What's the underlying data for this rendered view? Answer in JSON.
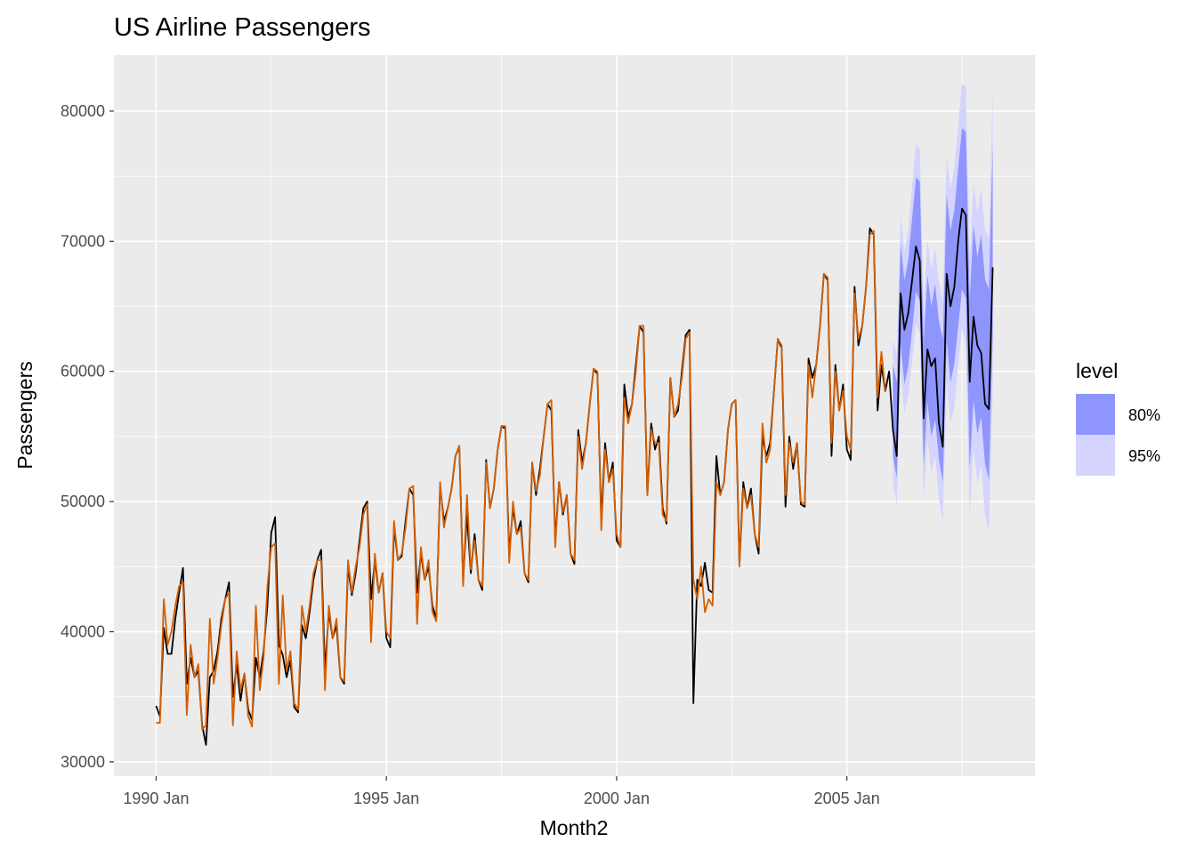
{
  "chart_data": {
    "type": "line",
    "title": "US Airline Passengers",
    "x_label": "Month2",
    "y_label": "Passengers",
    "legend_title": "level",
    "legend_position": "right",
    "grid": true,
    "x": [
      "1990 Jan",
      "1990 Feb",
      "1990 Mar",
      "1990 Apr",
      "1990 May",
      "1990 Jun",
      "1990 Jul",
      "1990 Aug",
      "1990 Sep",
      "1990 Oct",
      "1990 Nov",
      "1990 Dec",
      "1991 Jan",
      "1991 Feb",
      "1991 Mar",
      "1991 Apr",
      "1991 May",
      "1991 Jun",
      "1991 Jul",
      "1991 Aug",
      "1991 Sep",
      "1991 Oct",
      "1991 Nov",
      "1991 Dec",
      "1992 Jan",
      "1992 Feb",
      "1992 Mar",
      "1992 Apr",
      "1992 May",
      "1992 Jun",
      "1992 Jul",
      "1992 Aug",
      "1992 Sep",
      "1992 Oct",
      "1992 Nov",
      "1992 Dec",
      "1993 Jan",
      "1993 Feb",
      "1993 Mar",
      "1993 Apr",
      "1993 May",
      "1993 Jun",
      "1993 Jul",
      "1993 Aug",
      "1993 Sep",
      "1993 Oct",
      "1993 Nov",
      "1993 Dec",
      "1994 Jan",
      "1994 Feb",
      "1994 Mar",
      "1994 Apr",
      "1994 May",
      "1994 Jun",
      "1994 Jul",
      "1994 Aug",
      "1994 Sep",
      "1994 Oct",
      "1994 Nov",
      "1994 Dec",
      "1995 Jan",
      "1995 Feb",
      "1995 Mar",
      "1995 Apr",
      "1995 May",
      "1995 Jun",
      "1995 Jul",
      "1995 Aug",
      "1995 Sep",
      "1995 Oct",
      "1995 Nov",
      "1995 Dec",
      "1996 Jan",
      "1996 Feb",
      "1996 Mar",
      "1996 Apr",
      "1996 May",
      "1996 Jun",
      "1996 Jul",
      "1996 Aug",
      "1996 Sep",
      "1996 Oct",
      "1996 Nov",
      "1996 Dec",
      "1997 Jan",
      "1997 Feb",
      "1997 Mar",
      "1997 Apr",
      "1997 May",
      "1997 Jun",
      "1997 Jul",
      "1997 Aug",
      "1997 Sep",
      "1997 Oct",
      "1997 Nov",
      "1997 Dec",
      "1998 Jan",
      "1998 Feb",
      "1998 Mar",
      "1998 Apr",
      "1998 May",
      "1998 Jun",
      "1998 Jul",
      "1998 Aug",
      "1998 Sep",
      "1998 Oct",
      "1998 Nov",
      "1998 Dec",
      "1999 Jan",
      "1999 Feb",
      "1999 Mar",
      "1999 Apr",
      "1999 May",
      "1999 Jun",
      "1999 Jul",
      "1999 Aug",
      "1999 Sep",
      "1999 Oct",
      "1999 Nov",
      "1999 Dec",
      "2000 Jan",
      "2000 Feb",
      "2000 Mar",
      "2000 Apr",
      "2000 May",
      "2000 Jun",
      "2000 Jul",
      "2000 Aug",
      "2000 Sep",
      "2000 Oct",
      "2000 Nov",
      "2000 Dec",
      "2001 Jan",
      "2001 Feb",
      "2001 Mar",
      "2001 Apr",
      "2001 May",
      "2001 Jun",
      "2001 Jul",
      "2001 Aug",
      "2001 Sep",
      "2001 Oct",
      "2001 Nov",
      "2001 Dec",
      "2002 Jan",
      "2002 Feb",
      "2002 Mar",
      "2002 Apr",
      "2002 May",
      "2002 Jun",
      "2002 Jul",
      "2002 Aug",
      "2002 Sep",
      "2002 Oct",
      "2002 Nov",
      "2002 Dec",
      "2003 Jan",
      "2003 Feb",
      "2003 Mar",
      "2003 Apr",
      "2003 May",
      "2003 Jun",
      "2003 Jul",
      "2003 Aug",
      "2003 Sep",
      "2003 Oct",
      "2003 Nov",
      "2003 Dec",
      "2004 Jan",
      "2004 Feb",
      "2004 Mar",
      "2004 Apr",
      "2004 May",
      "2004 Jun",
      "2004 Jul",
      "2004 Aug",
      "2004 Sep",
      "2004 Oct",
      "2004 Nov",
      "2004 Dec",
      "2005 Jan",
      "2005 Feb",
      "2005 Mar",
      "2005 Apr",
      "2005 May",
      "2005 Jun",
      "2005 Jul",
      "2005 Aug",
      "2005 Sep",
      "2005 Oct",
      "2005 Nov",
      "2005 Dec",
      "2006 Jan",
      "2006 Feb",
      "2006 Mar",
      "2006 Apr",
      "2006 May",
      "2006 Jun",
      "2006 Jul",
      "2006 Aug",
      "2006 Sep",
      "2006 Oct",
      "2006 Nov",
      "2006 Dec",
      "2007 Jan",
      "2007 Feb",
      "2007 Mar",
      "2007 Apr",
      "2007 May",
      "2007 Jun",
      "2007 Jul",
      "2007 Aug",
      "2007 Sep",
      "2007 Oct",
      "2007 Nov",
      "2007 Dec",
      "2008 Jan",
      "2008 Feb",
      "2008 Mar"
    ],
    "series": [
      {
        "color": "#000000",
        "values": [
          34300,
          33500,
          40300,
          38300,
          38300,
          41000,
          43000,
          44900,
          36000,
          38000,
          36500,
          37000,
          32800,
          31300,
          36500,
          37000,
          38500,
          41000,
          42500,
          43800,
          35000,
          37500,
          34700,
          36800,
          34000,
          33200,
          38000,
          36500,
          38500,
          42000,
          47600,
          48800,
          39000,
          38200,
          36500,
          37800,
          34200,
          33800,
          40500,
          39500,
          41500,
          44000,
          45500,
          46300,
          37000,
          41500,
          39500,
          40500,
          36500,
          36000,
          45000,
          42800,
          44500,
          47000,
          49500,
          50000,
          42500,
          45500,
          43000,
          44500,
          39500,
          38800,
          48000,
          45500,
          45800,
          48500,
          51000,
          50500,
          43000,
          46000,
          44000,
          45000,
          42000,
          41000,
          51200,
          48500,
          49500,
          51000,
          53500,
          54200,
          44000,
          49000,
          44500,
          47500,
          44000,
          43200,
          53200,
          49500,
          51000,
          54000,
          55800,
          55600,
          46000,
          49500,
          47500,
          48500,
          44500,
          43800,
          53000,
          50500,
          52500,
          55000,
          57500,
          57000,
          47000,
          51500,
          49000,
          50500,
          46000,
          45200,
          55500,
          53000,
          54500,
          57500,
          60200,
          59800,
          48500,
          54500,
          51500,
          53000,
          47000,
          46500,
          59000,
          56500,
          57500,
          60500,
          63500,
          63000,
          50500,
          56000,
          54000,
          55000,
          49500,
          48300,
          59500,
          56500,
          57000,
          60000,
          62800,
          63200,
          34500,
          44000,
          43500,
          45300,
          43200,
          43000,
          53500,
          50500,
          51500,
          55500,
          57500,
          57800,
          45200,
          51500,
          49500,
          51000,
          47500,
          46000,
          55000,
          53500,
          54500,
          58500,
          62500,
          61800,
          49600,
          55000,
          52500,
          54500,
          49800,
          49600,
          61000,
          59500,
          60500,
          63500,
          67500,
          67000,
          53500,
          60500,
          57000,
          59000,
          54000,
          53200,
          66500,
          62000,
          63500,
          66500,
          71000,
          70500,
          57000,
          60500,
          58500,
          60000,
          55500,
          53500,
          66000,
          63200,
          64500,
          67000,
          69600,
          68500,
          56400,
          61700,
          60400,
          61000,
          56000,
          54200,
          67500,
          65000,
          66500,
          70000,
          72500,
          72000,
          59200,
          64200,
          62000,
          61400,
          57500,
          57100,
          68000
        ]
      },
      {
        "color": "#d55e00",
        "values": [
          33000,
          33000,
          42500,
          39000,
          40000,
          42000,
          43500,
          43800,
          33600,
          39000,
          36500,
          37500,
          32500,
          32800,
          41000,
          36000,
          38000,
          40500,
          42500,
          43000,
          32800,
          38500,
          35500,
          36800,
          33500,
          32700,
          42000,
          35500,
          38000,
          43500,
          46500,
          46800,
          36000,
          42800,
          37000,
          38500,
          34500,
          34000,
          42000,
          40000,
          42000,
          44500,
          45500,
          45500,
          35500,
          42000,
          39500,
          41000,
          36500,
          36200,
          45500,
          43000,
          45000,
          46500,
          49000,
          49800,
          39200,
          46000,
          43000,
          44500,
          40000,
          39500,
          48500,
          45500,
          46000,
          48000,
          51000,
          51200,
          40600,
          46500,
          44000,
          45500,
          41500,
          40800,
          51500,
          48000,
          49500,
          51000,
          53500,
          54300,
          43500,
          50500,
          44800,
          47000,
          44000,
          43500,
          53000,
          49500,
          51000,
          54000,
          55800,
          55800,
          45300,
          50000,
          47500,
          48000,
          44500,
          44000,
          53000,
          50800,
          52000,
          55000,
          57500,
          57800,
          46500,
          51500,
          49200,
          50500,
          46000,
          45500,
          55000,
          52500,
          54500,
          57500,
          60200,
          60000,
          47800,
          54000,
          51500,
          52500,
          47500,
          46500,
          58000,
          56000,
          57500,
          60000,
          63500,
          63500,
          50500,
          55500,
          54500,
          54500,
          49000,
          48500,
          59500,
          56500,
          57500,
          59500,
          62500,
          63000,
          44000,
          42500,
          45000,
          41500,
          42500,
          42000,
          51500,
          50500,
          51500,
          55500,
          57500,
          57800,
          45000,
          51000,
          49500,
          50500,
          47500,
          46500,
          56000,
          53000,
          54000,
          58500,
          62500,
          62000,
          50500,
          54500,
          53000,
          54500,
          50000,
          49800,
          60500,
          58000,
          60500,
          63500,
          67500,
          67200,
          54500,
          60000,
          57000,
          58500,
          55000,
          54000,
          66000,
          62500,
          63500,
          66500,
          70500,
          70800,
          58000,
          61500,
          58500,
          null,
          null,
          null,
          null,
          null,
          null,
          null,
          null,
          null,
          null,
          null,
          null,
          null,
          null,
          null,
          null,
          null,
          null,
          null,
          null,
          null,
          null,
          null,
          null,
          null,
          null,
          null,
          null
        ]
      }
    ],
    "bands": [
      {
        "name": "95%",
        "color": "#d4d4fe",
        "x": [
          "2006 Jan",
          "2006 Feb",
          "2006 Mar",
          "2006 Apr",
          "2006 May",
          "2006 Jun",
          "2006 Jul",
          "2006 Aug",
          "2006 Sep",
          "2006 Oct",
          "2006 Nov",
          "2006 Dec",
          "2007 Jan",
          "2007 Feb",
          "2007 Mar",
          "2007 Apr",
          "2007 May",
          "2007 Jun",
          "2007 Jul",
          "2007 Aug",
          "2007 Sep",
          "2007 Oct",
          "2007 Nov",
          "2007 Dec",
          "2008 Jan",
          "2008 Feb",
          "2008 Mar"
        ],
        "lower": [
          51500,
          49800,
          60000,
          56800,
          58100,
          60800,
          63600,
          62900,
          50200,
          54900,
          52200,
          53500,
          50200,
          48500,
          59300,
          56000,
          57300,
          60500,
          63300,
          62100,
          48900,
          54200,
          51400,
          52700,
          49000,
          47700,
          58500
        ],
        "upper": [
          62500,
          61200,
          72000,
          69200,
          70900,
          74200,
          77400,
          77100,
          64800,
          70100,
          67800,
          69500,
          66800,
          65500,
          76700,
          74000,
          75700,
          78900,
          82100,
          81900,
          68600,
          74400,
          72200,
          74100,
          70800,
          70300,
          81500
        ]
      },
      {
        "name": "80%",
        "color": "#8e95fd",
        "x": [
          "2006 Jan",
          "2006 Feb",
          "2006 Mar",
          "2006 Apr",
          "2006 May",
          "2006 Jun",
          "2006 Jul",
          "2006 Aug",
          "2006 Sep",
          "2006 Oct",
          "2006 Nov",
          "2006 Dec",
          "2007 Jan",
          "2007 Feb",
          "2007 Mar",
          "2007 Apr",
          "2007 May",
          "2007 Jun",
          "2007 Jul",
          "2007 Aug",
          "2007 Sep",
          "2007 Oct",
          "2007 Nov",
          "2007 Dec",
          "2008 Jan",
          "2008 Feb",
          "2008 Mar"
        ],
        "lower": [
          53500,
          51800,
          62200,
          59000,
          60400,
          63200,
          66100,
          65400,
          52800,
          57600,
          55000,
          56300,
          53200,
          51500,
          62400,
          59200,
          60600,
          63400,
          66300,
          65600,
          52500,
          57800,
          55200,
          56500,
          52900,
          51700,
          62600
        ],
        "upper": [
          60500,
          59200,
          69800,
          67000,
          68600,
          71800,
          74900,
          74600,
          62200,
          67400,
          65000,
          66700,
          63800,
          62500,
          73600,
          70800,
          72400,
          75600,
          78700,
          78400,
          65500,
          71200,
          68800,
          70500,
          67100,
          66300,
          77400
        ]
      }
    ],
    "legend_order": [
      1,
      0
    ],
    "xlim": [
      "1989 Feb",
      "2009 Feb"
    ],
    "xticks": [
      "1990 Jan",
      "1995 Jan",
      "2000 Jan",
      "2005 Jan"
    ],
    "ylim": [
      28900,
      84300
    ],
    "yticks": [
      30000,
      40000,
      50000,
      60000,
      70000,
      80000
    ]
  }
}
